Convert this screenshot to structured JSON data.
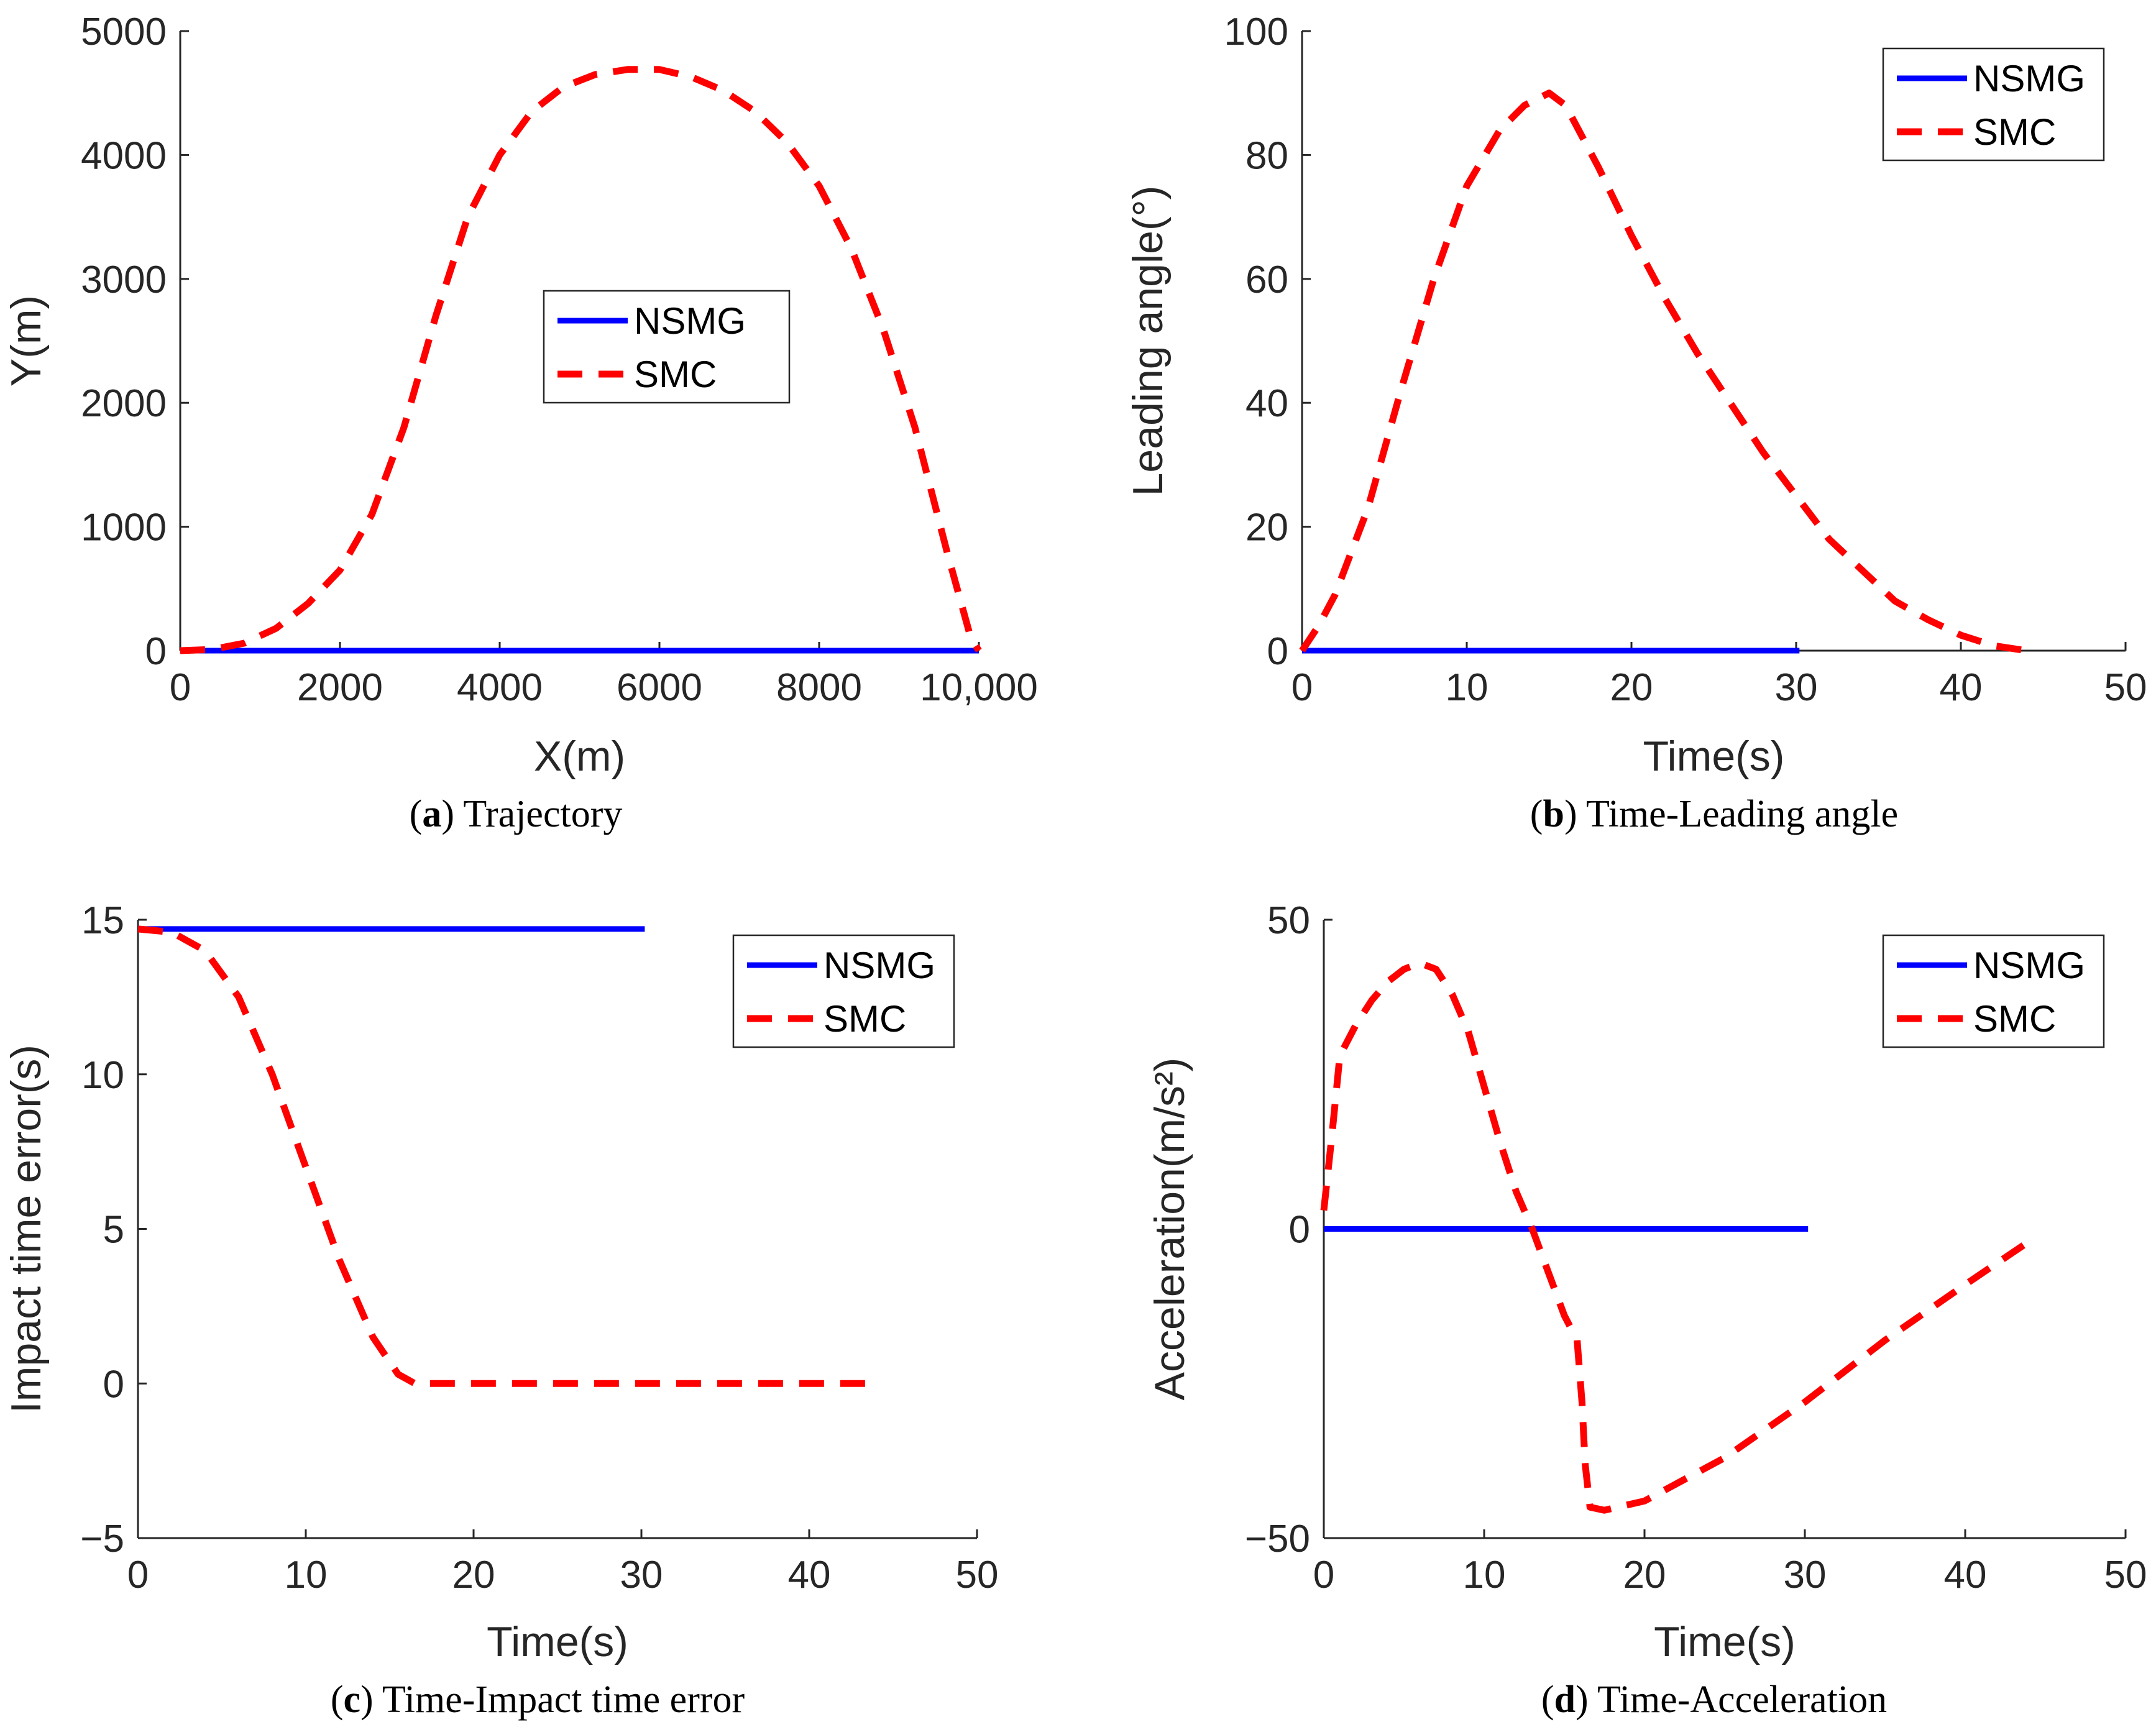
{
  "colors": {
    "nsmg": "#0000ff",
    "smc": "#ff0000",
    "axis": "#262626"
  },
  "chart_data": [
    {
      "id": "a",
      "type": "line",
      "caption_letter": "a",
      "caption_title": "Trajectory",
      "xlabel": "X(m)",
      "ylabel": "Y(m)",
      "xlim": [
        0,
        10000
      ],
      "ylim": [
        0,
        5000
      ],
      "xticks": [
        0,
        2000,
        4000,
        6000,
        8000,
        10000
      ],
      "xtick_labels": [
        "0",
        "2000",
        "4000",
        "6000",
        "8000",
        "10,000"
      ],
      "yticks": [
        0,
        1000,
        2000,
        3000,
        4000,
        5000
      ],
      "ytick_labels": [
        "0",
        "1000",
        "2000",
        "3000",
        "4000",
        "5000"
      ],
      "legend": {
        "position": "center",
        "entries": [
          "NSMG",
          "SMC"
        ]
      },
      "series": [
        {
          "name": "NSMG",
          "style": "solid",
          "x": [
            0,
            10000
          ],
          "y": [
            0,
            0
          ]
        },
        {
          "name": "SMC",
          "style": "dashed",
          "x": [
            0,
            400,
            800,
            1200,
            1600,
            2000,
            2400,
            2800,
            3200,
            3600,
            4000,
            4400,
            4800,
            5200,
            5600,
            6000,
            6400,
            6800,
            7200,
            7600,
            8000,
            8400,
            8800,
            9200,
            9600,
            9900,
            10000
          ],
          "y": [
            0,
            10,
            60,
            180,
            380,
            650,
            1100,
            1800,
            2700,
            3500,
            4000,
            4350,
            4550,
            4650,
            4690,
            4690,
            4630,
            4520,
            4350,
            4100,
            3750,
            3250,
            2600,
            1800,
            800,
            100,
            0
          ]
        }
      ]
    },
    {
      "id": "b",
      "type": "line",
      "caption_letter": "b",
      "caption_title": "Time-Leading angle",
      "xlabel": "Time(s)",
      "ylabel": "Leading angle(°)",
      "xlim": [
        0,
        50
      ],
      "ylim": [
        0,
        100
      ],
      "xticks": [
        0,
        10,
        20,
        30,
        40,
        50
      ],
      "xtick_labels": [
        "0",
        "10",
        "20",
        "30",
        "40",
        "50"
      ],
      "yticks": [
        0,
        20,
        40,
        60,
        80,
        100
      ],
      "ytick_labels": [
        "0",
        "20",
        "40",
        "60",
        "80",
        "100"
      ],
      "legend": {
        "position": "top-right",
        "entries": [
          "NSMG",
          "SMC"
        ]
      },
      "series": [
        {
          "name": "NSMG",
          "style": "solid",
          "x": [
            0,
            30.2
          ],
          "y": [
            0,
            0
          ]
        },
        {
          "name": "SMC",
          "style": "dashed",
          "x": [
            0,
            1,
            2,
            4,
            6,
            8,
            10,
            12,
            13.5,
            15,
            16,
            18,
            20,
            22,
            24,
            26,
            28,
            30,
            32,
            34,
            36,
            38,
            40,
            42,
            44
          ],
          "y": [
            0,
            4,
            9,
            23,
            42,
            60,
            75,
            84,
            88,
            90,
            88,
            78,
            67,
            57,
            48,
            40,
            32,
            25,
            18,
            13,
            8,
            5,
            2.5,
            0.8,
            0
          ]
        }
      ]
    },
    {
      "id": "c",
      "type": "line",
      "caption_letter": "c",
      "caption_title": "Time-Impact time error",
      "xlabel": "Time(s)",
      "ylabel": "Impact time error(s)",
      "xlim": [
        0,
        50
      ],
      "ylim": [
        -5,
        15
      ],
      "xticks": [
        0,
        10,
        20,
        30,
        40,
        50
      ],
      "xtick_labels": [
        "0",
        "10",
        "20",
        "30",
        "40",
        "50"
      ],
      "yticks": [
        -5,
        0,
        5,
        10,
        15
      ],
      "ytick_labels": [
        "−5",
        "0",
        "5",
        "10",
        "15"
      ],
      "legend": {
        "position": "top-right",
        "entries": [
          "NSMG",
          "SMC"
        ]
      },
      "series": [
        {
          "name": "NSMG",
          "style": "solid",
          "x": [
            0,
            30.2
          ],
          "y": [
            14.7,
            14.7
          ]
        },
        {
          "name": "SMC",
          "style": "dashed",
          "x": [
            0,
            2,
            4,
            6,
            8,
            10,
            12,
            14,
            15.5,
            16.5,
            20,
            30,
            44
          ],
          "y": [
            14.7,
            14.6,
            14.0,
            12.5,
            10.0,
            7.0,
            4.0,
            1.5,
            0.3,
            0,
            0,
            0,
            0
          ]
        }
      ]
    },
    {
      "id": "d",
      "type": "line",
      "caption_letter": "d",
      "caption_title": "Time-Acceleration",
      "xlabel": "Time(s)",
      "ylabel": "Acceleration(m/s²)",
      "xlim": [
        0,
        50
      ],
      "ylim": [
        -50,
        50
      ],
      "xticks": [
        0,
        10,
        20,
        30,
        40,
        50
      ],
      "xtick_labels": [
        "0",
        "10",
        "20",
        "30",
        "40",
        "50"
      ],
      "yticks": [
        -50,
        0,
        50
      ],
      "ytick_labels": [
        "−50",
        "0",
        "50"
      ],
      "legend": {
        "position": "top-right",
        "entries": [
          "NSMG",
          "SMC"
        ]
      },
      "series": [
        {
          "name": "NSMG",
          "style": "solid",
          "x": [
            0,
            30.2
          ],
          "y": [
            0,
            0
          ]
        },
        {
          "name": "SMC",
          "style": "dashed",
          "x": [
            0,
            0.5,
            1,
            2,
            3,
            4,
            5,
            6,
            7,
            8,
            9,
            10,
            11,
            12,
            13,
            14,
            15,
            15.8,
            16.1,
            16.3,
            16.6,
            17.5,
            20,
            25,
            30,
            35,
            40,
            44
          ],
          "y": [
            3,
            15,
            28,
            33,
            37,
            40,
            42,
            43,
            42,
            38,
            32,
            23,
            14,
            6,
            0,
            -7,
            -14,
            -18,
            -28,
            -38,
            -45,
            -45.5,
            -44,
            -37,
            -28,
            -18,
            -9,
            -2
          ]
        }
      ]
    }
  ]
}
